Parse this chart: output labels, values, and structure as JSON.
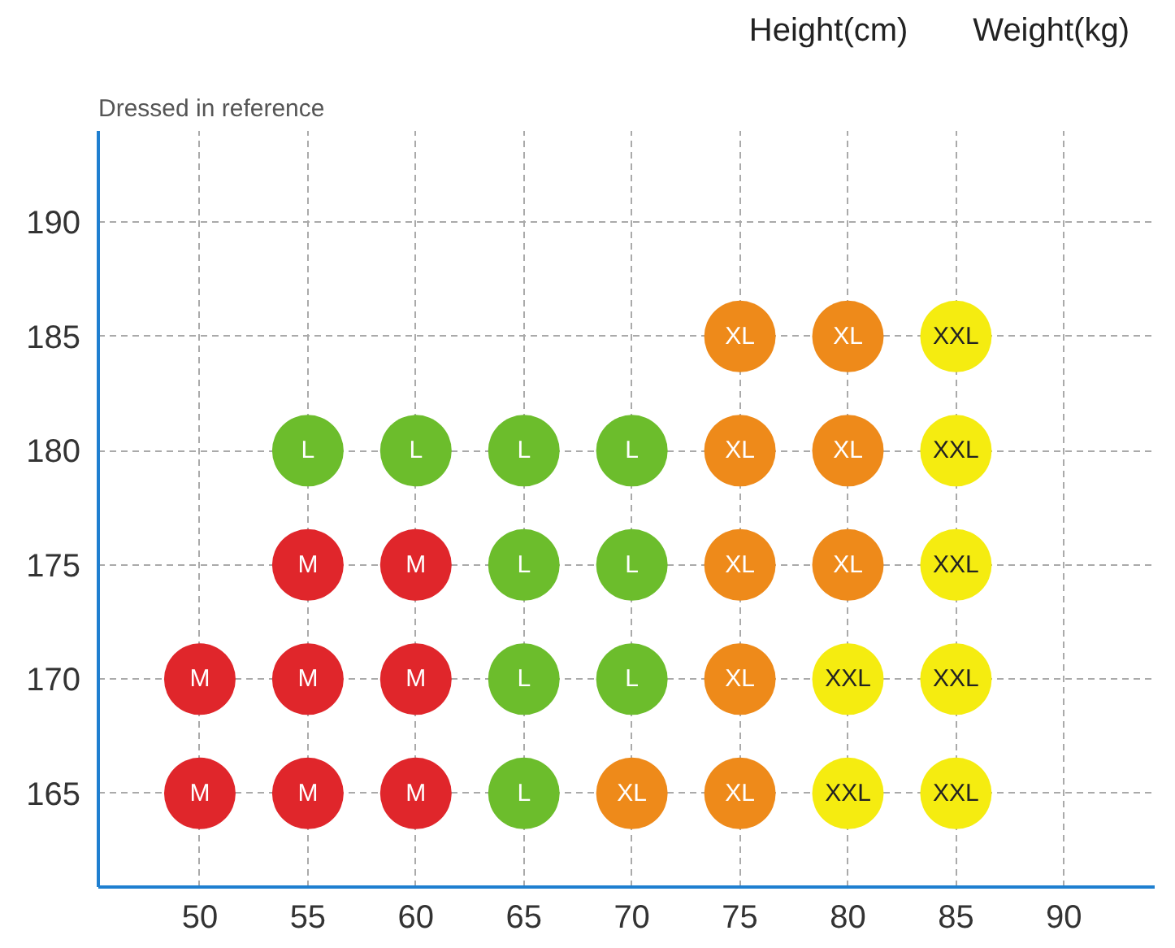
{
  "chart_data": {
    "type": "scatter",
    "title": "Dressed in reference",
    "ylabel": "Height(cm)",
    "xlabel": "Weight(kg)",
    "marker": "circle",
    "grid": true,
    "xlim": [
      45.3,
      94.2
    ],
    "ylim": [
      160.9,
      194
    ],
    "xticks": [
      50,
      55,
      60,
      65,
      70,
      75,
      80,
      85,
      90
    ],
    "yticks": [
      165,
      170,
      175,
      180,
      185,
      190
    ],
    "series": [
      {
        "name": "M",
        "color": "#e0262b",
        "x": [
          50,
          50,
          55,
          55,
          55,
          60,
          60,
          60
        ],
        "values": [
          170,
          165,
          175,
          170,
          165,
          175,
          170,
          165
        ]
      },
      {
        "name": "L",
        "color": "#6cbd2c",
        "x": [
          55,
          60,
          65,
          70,
          65,
          70,
          65,
          70,
          65
        ],
        "values": [
          180,
          180,
          180,
          180,
          175,
          175,
          170,
          170,
          165
        ]
      },
      {
        "name": "XL",
        "color": "#ee8a1a",
        "x": [
          75,
          80,
          75,
          80,
          75,
          80,
          75,
          70,
          75
        ],
        "values": [
          185,
          185,
          180,
          180,
          175,
          175,
          170,
          165,
          165
        ]
      },
      {
        "name": "XXL",
        "color": "#f5ec10",
        "x": [
          85,
          85,
          85,
          80,
          85,
          80,
          85
        ],
        "values": [
          185,
          180,
          175,
          170,
          170,
          165,
          165
        ]
      }
    ]
  }
}
